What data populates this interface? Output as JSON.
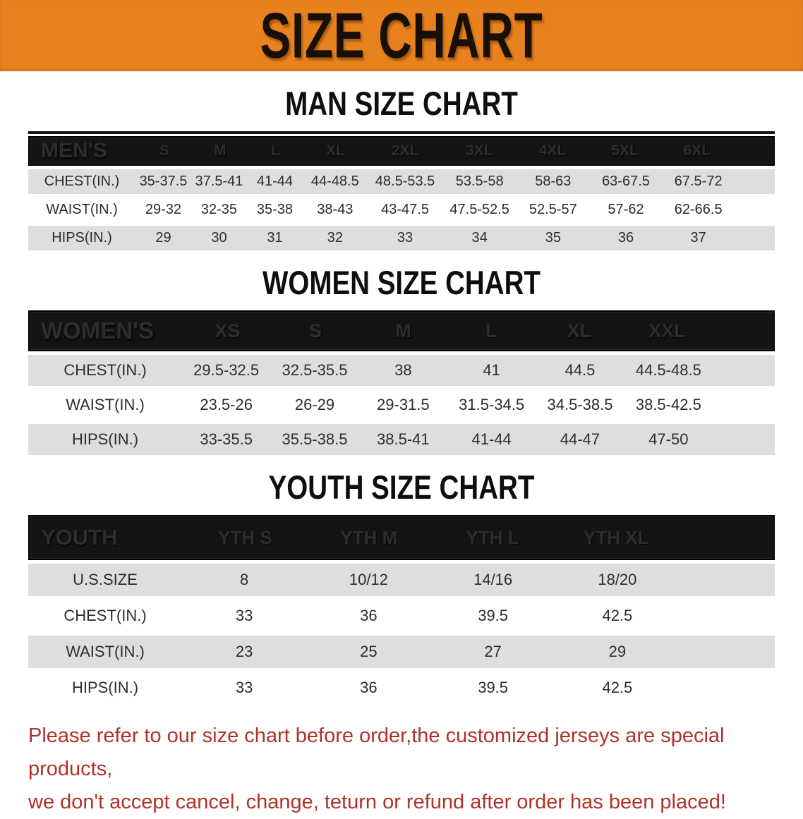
{
  "banner": {
    "title": "SIZE CHART",
    "bg_color": "#E7821E",
    "text_color": "#181008"
  },
  "sections": [
    {
      "id": "men",
      "heading": "MAN SIZE CHART",
      "table": {
        "corner_label": "MEN'S",
        "columns": [
          "S",
          "M",
          "L",
          "XL",
          "2XL",
          "3XL",
          "4XL",
          "5XL",
          "6XL"
        ],
        "rows": [
          {
            "label": "CHEST(IN.)",
            "values": [
              "35-37.5",
              "37.5-41",
              "41-44",
              "44-48.5",
              "48.5-53.5",
              "53.5-58",
              "58-63",
              "63-67.5",
              "67.5-72"
            ]
          },
          {
            "label": "WAIST(IN.)",
            "values": [
              "29-32",
              "32-35",
              "35-38",
              "38-43",
              "43-47.5",
              "47.5-52.5",
              "52.5-57",
              "57-62",
              "62-66.5"
            ]
          },
          {
            "label": "HIPS(IN.)",
            "values": [
              "29",
              "30",
              "31",
              "32",
              "33",
              "34",
              "35",
              "36",
              "37"
            ]
          }
        ]
      }
    },
    {
      "id": "women",
      "heading": "WOMEN SIZE CHART",
      "table": {
        "corner_label": "WOMEN'S",
        "columns": [
          "XS",
          "S",
          "M",
          "L",
          "XL",
          "XXL"
        ],
        "rows": [
          {
            "label": "CHEST(IN.)",
            "values": [
              "29.5-32.5",
              "32.5-35.5",
              "38",
              "41",
              "44.5",
              "44.5-48.5"
            ]
          },
          {
            "label": "WAIST(IN.)",
            "values": [
              "23.5-26",
              "26-29",
              "29-31.5",
              "31.5-34.5",
              "34.5-38.5",
              "38.5-42.5"
            ]
          },
          {
            "label": "HIPS(IN.)",
            "values": [
              "33-35.5",
              "35.5-38.5",
              "38.5-41",
              "41-44",
              "44-47",
              "47-50"
            ]
          }
        ]
      }
    },
    {
      "id": "youth",
      "heading": "YOUTH SIZE CHART",
      "table": {
        "corner_label": "YOUTH",
        "columns": [
          "YTH S",
          "YTH M",
          "YTH L",
          "YTH XL"
        ],
        "rows": [
          {
            "label": "U.S.SIZE",
            "values": [
              "8",
              "10/12",
              "14/16",
              "18/20"
            ]
          },
          {
            "label": "CHEST(IN.)",
            "values": [
              "33",
              "36",
              "39.5",
              "42.5"
            ]
          },
          {
            "label": "WAIST(IN.)",
            "values": [
              "23",
              "25",
              "27",
              "29"
            ]
          },
          {
            "label": "HIPS(IN.)",
            "values": [
              "33",
              "36",
              "39.5",
              "42.5"
            ]
          }
        ]
      }
    }
  ],
  "disclaimer": {
    "lines": [
      "Please refer to our size chart before order,the customized jerseys are special products,",
      "we don't accept cancel, change, teturn or refund after order has been placed!"
    ],
    "color": "#B03228"
  }
}
